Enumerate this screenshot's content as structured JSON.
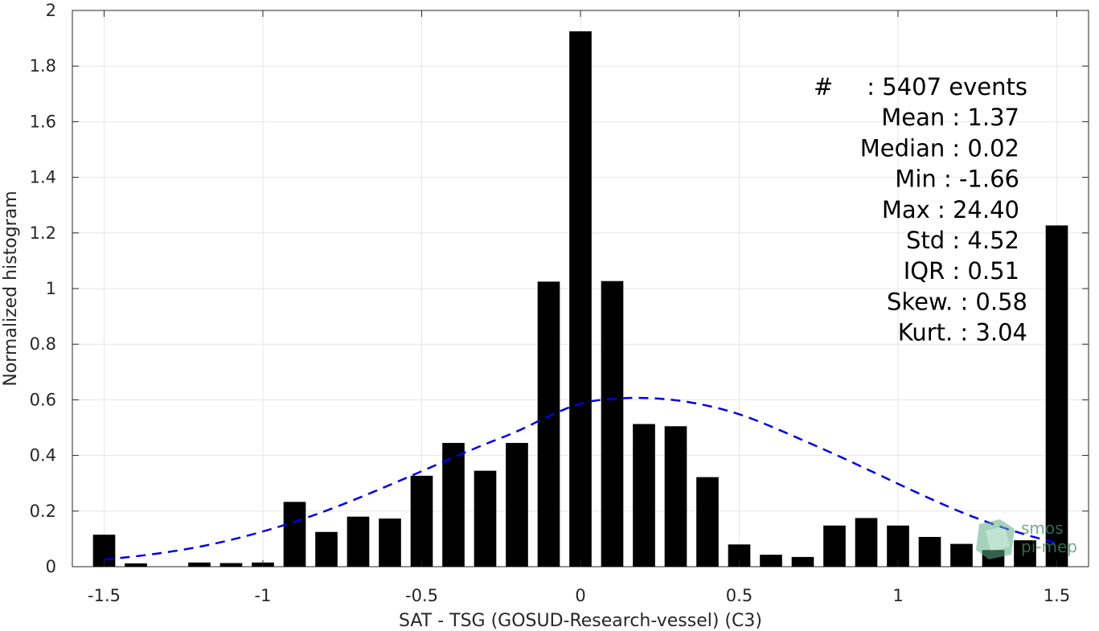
{
  "chart_data": {
    "type": "bar",
    "xlabel": "SAT - TSG (GOSUD-Research-vessel) (C3)",
    "ylabel": "Normalized histogram",
    "xlim": [
      -1.6,
      1.6
    ],
    "ylim": [
      0,
      2
    ],
    "xticks": [
      -1.5,
      -1,
      -0.5,
      0,
      0.5,
      1,
      1.5
    ],
    "xtick_labels": [
      "-1.5",
      "-1",
      "-0.5",
      "0",
      "0.5",
      "1",
      "1.5"
    ],
    "yticks": [
      0,
      0.2,
      0.4,
      0.6,
      0.8,
      1,
      1.2,
      1.4,
      1.6,
      1.8,
      2
    ],
    "ytick_labels": [
      "0",
      "0.2",
      "0.4",
      "0.6",
      "0.8",
      "1",
      "1.2",
      "1.4",
      "1.6",
      "1.8",
      "2"
    ],
    "grid": true,
    "bin_width": 0.1,
    "bar_color": "#000000",
    "bars": {
      "x": [
        -1.5,
        -1.4,
        -1.3,
        -1.2,
        -1.1,
        -1.0,
        -0.9,
        -0.8,
        -0.7,
        -0.6,
        -0.5,
        -0.4,
        -0.3,
        -0.2,
        -0.1,
        0.0,
        0.1,
        0.2,
        0.3,
        0.4,
        0.5,
        0.6,
        0.7,
        0.8,
        0.9,
        1.0,
        1.1,
        1.2,
        1.3,
        1.4,
        1.5
      ],
      "values": [
        0.115,
        0.012,
        0.0,
        0.015,
        0.013,
        0.015,
        0.233,
        0.125,
        0.18,
        0.173,
        0.327,
        0.445,
        0.345,
        0.445,
        1.025,
        1.925,
        1.027,
        0.513,
        0.505,
        0.322,
        0.08,
        0.043,
        0.035,
        0.148,
        0.175,
        0.148,
        0.107,
        0.082,
        0.06,
        0.095,
        1.227
      ]
    },
    "fit_curve": {
      "style": "dashed",
      "color": "#0000e6",
      "x": [
        -1.5,
        -1.4,
        -1.3,
        -1.2,
        -1.1,
        -1.0,
        -0.9,
        -0.8,
        -0.7,
        -0.6,
        -0.5,
        -0.4,
        -0.3,
        -0.2,
        -0.1,
        0.0,
        0.1,
        0.2,
        0.3,
        0.4,
        0.5,
        0.6,
        0.7,
        0.8,
        0.9,
        1.0,
        1.1,
        1.2,
        1.3,
        1.4,
        1.5
      ],
      "y": [
        0.026,
        0.037,
        0.052,
        0.071,
        0.096,
        0.126,
        0.161,
        0.201,
        0.246,
        0.294,
        0.343,
        0.393,
        0.441,
        0.485,
        0.542,
        0.59,
        0.605,
        0.608,
        0.6,
        0.58,
        0.55,
        0.505,
        0.455,
        0.405,
        0.352,
        0.298,
        0.245,
        0.195,
        0.152,
        0.115,
        0.085
      ]
    },
    "stats": [
      {
        "label": "#",
        "sep": ":",
        "value": "5407 events"
      },
      {
        "label": "Mean",
        "sep": ":",
        "value": "1.37"
      },
      {
        "label": "Median",
        "sep": ":",
        "value": "0.02"
      },
      {
        "label": "Min",
        "sep": ":",
        "value": "-1.66"
      },
      {
        "label": "Max",
        "sep": ":",
        "value": "24.40"
      },
      {
        "label": "Std",
        "sep": ":",
        "value": "4.52"
      },
      {
        "label": "IQR",
        "sep": ":",
        "value": "0.51"
      },
      {
        "label": "Skew.",
        "sep": ":",
        "value": "0.58"
      },
      {
        "label": "Kurt.",
        "sep": ":",
        "value": "3.04"
      }
    ]
  },
  "watermark": {
    "line1": "smos",
    "line2": "pi-mep",
    "color": "#3f8f6a"
  }
}
